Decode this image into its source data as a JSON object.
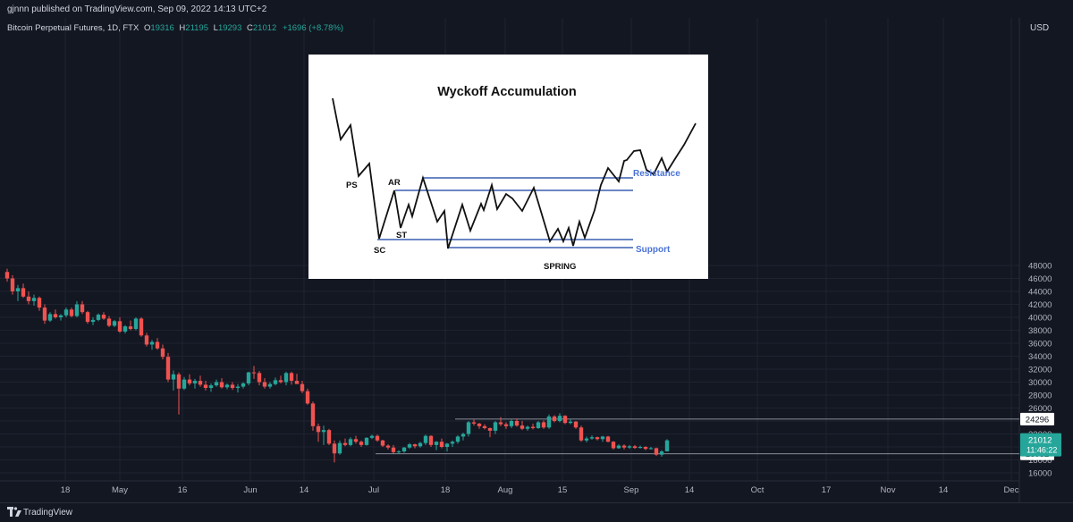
{
  "header": {
    "published": "gjnnn published on TradingView.com, Sep 09, 2022 14:13 UTC+2"
  },
  "symbol": {
    "name": "Bitcoin Perpetual Futures, 1D, FTX",
    "o_label": "O",
    "o": "19316",
    "h_label": "H",
    "h": "21195",
    "l_label": "L",
    "l": "19293",
    "c_label": "C",
    "c": "21012",
    "change": "+1696 (+8.78%)"
  },
  "currency": "USD",
  "footer": {
    "brand": "TradingView"
  },
  "colors": {
    "up": "#26a69a",
    "down": "#ef5350",
    "background": "#131722",
    "grid": "#1f2330",
    "level_line": "#b2b5be",
    "price_tag": "#26a69a"
  },
  "chart_data": {
    "type": "candlestick",
    "title": "Bitcoin Perpetual Futures, 1D, FTX",
    "x_tick_labels": [
      "18",
      "May",
      "16",
      "Jun",
      "14",
      "Jul",
      "18",
      "Aug",
      "15",
      "Sep",
      "14",
      "Oct",
      "17",
      "Nov",
      "14",
      "Dec"
    ],
    "y_ticks": [
      16000,
      18000,
      20000,
      22000,
      24000,
      26000,
      28000,
      30000,
      32000,
      34000,
      36000,
      38000,
      40000,
      42000,
      44000,
      46000,
      48000
    ],
    "y_tick_labels": [
      "16000",
      "18000",
      "",
      "22000",
      "",
      "26000",
      "28000",
      "30000",
      "32000",
      "34000",
      "36000",
      "38000",
      "40000",
      "42000",
      "44000",
      "46000",
      "48000"
    ],
    "ylim": [
      15000,
      51000
    ],
    "levels": [
      {
        "label": "24296",
        "value": 24296
      },
      {
        "label": "18932",
        "value": 18932
      }
    ],
    "last_price": {
      "label": "21012",
      "countdown": "11:46:22",
      "value": 21012
    },
    "ohlc_estimated": [
      [
        47000,
        47500,
        45500,
        46000
      ],
      [
        46000,
        46500,
        43500,
        44000
      ],
      [
        44000,
        45000,
        42500,
        44500
      ],
      [
        44500,
        45200,
        43000,
        43200
      ],
      [
        43200,
        44000,
        42000,
        42500
      ],
      [
        42500,
        43500,
        41800,
        43000
      ],
      [
        43000,
        43200,
        41000,
        41500
      ],
      [
        41500,
        42000,
        39000,
        39500
      ],
      [
        39500,
        40800,
        39300,
        40500
      ],
      [
        40500,
        41200,
        39800,
        40000
      ],
      [
        40000,
        40500,
        39500,
        40300
      ],
      [
        40300,
        41500,
        40000,
        41200
      ],
      [
        41200,
        41500,
        40000,
        40200
      ],
      [
        40200,
        42500,
        40000,
        42000
      ],
      [
        42000,
        42500,
        40500,
        40800
      ],
      [
        40800,
        41000,
        39000,
        39300
      ],
      [
        39300,
        40000,
        38800,
        39600
      ],
      [
        39600,
        40600,
        39400,
        40400
      ],
      [
        40400,
        40800,
        39600,
        39800
      ],
      [
        39800,
        40200,
        38500,
        38700
      ],
      [
        38700,
        39600,
        38500,
        39400
      ],
      [
        39400,
        40000,
        37600,
        37800
      ],
      [
        37800,
        38800,
        37500,
        38600
      ],
      [
        38600,
        39500,
        38000,
        38200
      ],
      [
        38200,
        40000,
        38000,
        39800
      ],
      [
        39800,
        40000,
        37000,
        37200
      ],
      [
        37200,
        37600,
        35500,
        35800
      ],
      [
        35800,
        36500,
        35000,
        36200
      ],
      [
        36200,
        36800,
        35000,
        35200
      ],
      [
        35200,
        35800,
        33500,
        33900
      ],
      [
        33900,
        34500,
        30000,
        30400
      ],
      [
        30400,
        31800,
        28700,
        31200
      ],
      [
        31200,
        31500,
        25000,
        29000
      ],
      [
        29000,
        30800,
        28800,
        30400
      ],
      [
        30400,
        31200,
        29500,
        29800
      ],
      [
        29800,
        30500,
        29000,
        30200
      ],
      [
        30200,
        31000,
        29300,
        29600
      ],
      [
        29600,
        30200,
        28700,
        29100
      ],
      [
        29100,
        29800,
        28500,
        29500
      ],
      [
        29500,
        30400,
        29300,
        30000
      ],
      [
        30000,
        30600,
        29000,
        29200
      ],
      [
        29200,
        29800,
        28900,
        29600
      ],
      [
        29600,
        30000,
        28800,
        29100
      ],
      [
        29100,
        29700,
        28400,
        29300
      ],
      [
        29300,
        30000,
        29000,
        29800
      ],
      [
        29800,
        31600,
        29500,
        31500
      ],
      [
        31500,
        32500,
        30500,
        31400
      ],
      [
        31400,
        31700,
        29500,
        30000
      ],
      [
        30000,
        30600,
        29000,
        29300
      ],
      [
        29300,
        30000,
        29000,
        29700
      ],
      [
        29700,
        30700,
        29500,
        30300
      ],
      [
        30300,
        31000,
        29800,
        30000
      ],
      [
        30000,
        31600,
        29500,
        31400
      ],
      [
        31400,
        31600,
        29600,
        30200
      ],
      [
        30200,
        31300,
        29800,
        29700
      ],
      [
        29700,
        30200,
        28300,
        28600
      ],
      [
        28600,
        29000,
        26500,
        26700
      ],
      [
        26700,
        27000,
        22500,
        23200
      ],
      [
        23200,
        23600,
        20800,
        22300
      ],
      [
        22300,
        23300,
        20300,
        22600
      ],
      [
        22600,
        22800,
        20300,
        20500
      ],
      [
        20500,
        21000,
        17600,
        19000
      ],
      [
        19000,
        21000,
        18800,
        20600
      ],
      [
        20600,
        21300,
        20100,
        20300
      ],
      [
        20300,
        21500,
        20100,
        21200
      ],
      [
        21200,
        21700,
        20500,
        20800
      ],
      [
        20800,
        21000,
        20000,
        20300
      ],
      [
        20300,
        21500,
        20200,
        21400
      ],
      [
        21400,
        21900,
        21200,
        21700
      ],
      [
        21700,
        21900,
        20800,
        21000
      ],
      [
        21000,
        21100,
        20000,
        20200
      ],
      [
        20200,
        20400,
        19600,
        19900
      ],
      [
        19900,
        20300,
        19000,
        19200
      ],
      [
        19200,
        19500,
        18900,
        19300
      ],
      [
        19300,
        20000,
        19100,
        19900
      ],
      [
        19900,
        20600,
        19700,
        20400
      ],
      [
        20400,
        20500,
        19800,
        20100
      ],
      [
        20100,
        20800,
        19900,
        20600
      ],
      [
        20600,
        21900,
        20300,
        21700
      ],
      [
        21700,
        21800,
        20000,
        20300
      ],
      [
        20300,
        20900,
        19500,
        20800
      ],
      [
        20800,
        21300,
        19800,
        20000
      ],
      [
        20000,
        20600,
        19300,
        20500
      ],
      [
        20500,
        21000,
        20000,
        20800
      ],
      [
        20800,
        21800,
        20500,
        21600
      ],
      [
        21600,
        22200,
        21000,
        22000
      ],
      [
        22000,
        24000,
        21600,
        23800
      ],
      [
        23800,
        24200,
        23300,
        23600
      ],
      [
        23600,
        23700,
        22800,
        23200
      ],
      [
        23200,
        23500,
        22700,
        22900
      ],
      [
        22900,
        23000,
        21500,
        22500
      ],
      [
        22500,
        24000,
        22000,
        23800
      ],
      [
        23800,
        24600,
        23200,
        23500
      ],
      [
        23500,
        23800,
        22800,
        23200
      ],
      [
        23200,
        24200,
        22900,
        24000
      ],
      [
        24000,
        24400,
        23100,
        23300
      ],
      [
        23300,
        24000,
        22600,
        22800
      ],
      [
        22800,
        23300,
        22500,
        23100
      ],
      [
        23100,
        23600,
        22700,
        22900
      ],
      [
        22900,
        24000,
        22800,
        23800
      ],
      [
        23800,
        24100,
        22800,
        23000
      ],
      [
        23000,
        25000,
        22800,
        24700
      ],
      [
        24700,
        24900,
        23800,
        24000
      ],
      [
        24000,
        25200,
        23800,
        24800
      ],
      [
        24800,
        24900,
        23500,
        23700
      ],
      [
        23700,
        24200,
        23500,
        23900
      ],
      [
        23900,
        24000,
        22800,
        23000
      ],
      [
        23000,
        23300,
        20800,
        21000
      ],
      [
        21000,
        21600,
        20700,
        21300
      ],
      [
        21300,
        21800,
        21100,
        21500
      ],
      [
        21500,
        21600,
        21000,
        21200
      ],
      [
        21200,
        21700,
        20800,
        21600
      ],
      [
        21600,
        21700,
        20700,
        20800
      ],
      [
        20800,
        20900,
        19600,
        19800
      ],
      [
        19800,
        20400,
        19700,
        20200
      ],
      [
        20200,
        20400,
        19600,
        19900
      ],
      [
        19900,
        20300,
        19700,
        20100
      ],
      [
        20100,
        20300,
        19700,
        19850
      ],
      [
        19850,
        20200,
        19750,
        20000
      ],
      [
        20000,
        20100,
        19500,
        19700
      ],
      [
        19700,
        20000,
        19600,
        19800
      ],
      [
        19800,
        19900,
        18600,
        18800
      ],
      [
        18800,
        19500,
        18500,
        19300
      ],
      [
        19316,
        21195,
        19293,
        21012
      ]
    ]
  },
  "overlay": {
    "title": "Wyckoff Accumulation",
    "labels": {
      "ps": "PS",
      "ar": "AR",
      "sc": "SC",
      "st": "ST",
      "spring": "SPRING",
      "resistance": "Resistance",
      "support": "Support"
    }
  }
}
